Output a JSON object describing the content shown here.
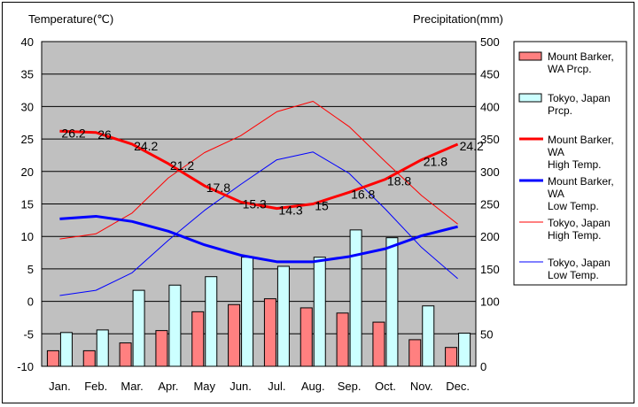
{
  "chart_data": {
    "type": "bar+line",
    "categories": [
      "Jan.",
      "Feb.",
      "Mar.",
      "Apr.",
      "May",
      "Jun.",
      "Jul.",
      "Aug.",
      "Sep.",
      "Oct.",
      "Nov.",
      "Dec."
    ],
    "y_left": {
      "label": "Temperature(℃)",
      "range": [
        -10,
        40
      ],
      "ticks": [
        40,
        35,
        30,
        25,
        20,
        15,
        10,
        5,
        0,
        -5,
        -10
      ]
    },
    "y_right": {
      "label": "Precipitation(mm)",
      "range": [
        0,
        500
      ],
      "ticks": [
        500,
        450,
        400,
        350,
        300,
        250,
        200,
        150,
        100,
        50,
        0
      ]
    },
    "grid": "horizontal",
    "legend_position": "right",
    "colors": {
      "plot_bg": "#c0c0c0",
      "mb_precip": "#ff8080",
      "tokyo_precip": "#ccffff",
      "mb_high": "#ff0000",
      "mb_low": "#0000ff",
      "tokyo_high": "#ff0000",
      "tokyo_low": "#0000ff"
    },
    "bar_series": [
      {
        "key": "mb_precip",
        "legend": [
          "Mount Barker,",
          "WA Prcp."
        ],
        "values": [
          24,
          24,
          36,
          55,
          84,
          95,
          104,
          90,
          82,
          68,
          41,
          29
        ]
      },
      {
        "key": "tokyo_precip",
        "legend": [
          "Tokyo, Japan",
          "Prcp."
        ],
        "values": [
          52,
          56,
          117,
          125,
          138,
          168,
          154,
          168,
          210,
          198,
          93,
          51
        ]
      }
    ],
    "line_series": [
      {
        "key": "mb_high",
        "legend": [
          "Mount Barker,",
          "WA",
          " High Temp."
        ],
        "width": 3,
        "values": [
          26.2,
          26,
          24.2,
          21.2,
          17.8,
          15.3,
          14.3,
          15,
          16.8,
          18.8,
          21.8,
          24.2
        ],
        "labels": [
          "26.2",
          "26",
          "24.2",
          "21.2",
          "17.8",
          "15.3",
          "14.3",
          "15",
          "16.8",
          "18.8",
          "21.8",
          "24.2"
        ]
      },
      {
        "key": "mb_low",
        "legend": [
          "Mount Barker,",
          "WA",
          " Low Temp."
        ],
        "width": 3,
        "values": [
          12.7,
          13.1,
          12.3,
          10.8,
          8.7,
          7.1,
          6.1,
          6.1,
          6.9,
          8.1,
          10.1,
          11.5
        ]
      },
      {
        "key": "tokyo_high",
        "legend": [
          "Tokyo, Japan",
          "High Temp."
        ],
        "width": 1,
        "values": [
          9.6,
          10.4,
          13.6,
          19.0,
          22.9,
          25.5,
          29.2,
          30.8,
          26.9,
          21.5,
          16.3,
          11.9
        ]
      },
      {
        "key": "tokyo_low",
        "legend": [
          "Tokyo, Japan",
          "Low Temp."
        ],
        "width": 1,
        "values": [
          0.9,
          1.7,
          4.4,
          9.4,
          14.0,
          18.0,
          21.8,
          23.0,
          19.7,
          14.2,
          8.3,
          3.5
        ]
      }
    ]
  }
}
